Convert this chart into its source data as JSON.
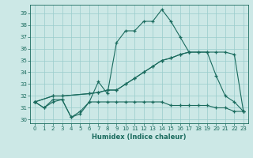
{
  "xlabel": "Humidex (Indice chaleur)",
  "bg_color": "#cce8e6",
  "line_color": "#1a6b5e",
  "grid_color": "#99cccc",
  "xlim": [
    -0.5,
    23.5
  ],
  "ylim": [
    29.7,
    39.7
  ],
  "yticks": [
    30,
    31,
    32,
    33,
    34,
    35,
    36,
    37,
    38,
    39
  ],
  "xticks": [
    0,
    1,
    2,
    3,
    4,
    5,
    6,
    7,
    8,
    9,
    10,
    11,
    12,
    13,
    14,
    15,
    16,
    17,
    18,
    19,
    20,
    21,
    22,
    23
  ],
  "series": [
    {
      "x": [
        0,
        1,
        2,
        3,
        4,
        5,
        6,
        7,
        8,
        9,
        10,
        11,
        12,
        13,
        14,
        15,
        16,
        17
      ],
      "y": [
        31.5,
        31.0,
        31.5,
        31.7,
        30.2,
        30.7,
        31.5,
        33.2,
        32.2,
        36.5,
        37.5,
        37.5,
        38.3,
        38.3,
        39.3,
        38.3,
        37.0,
        35.7
      ]
    },
    {
      "x": [
        0,
        1,
        2,
        3,
        4,
        5,
        6,
        7,
        8,
        9,
        10,
        11,
        12,
        13,
        14,
        15,
        16,
        17,
        18,
        19,
        20,
        21,
        22,
        23
      ],
      "y": [
        31.5,
        31.0,
        31.7,
        31.7,
        30.2,
        30.5,
        31.5,
        31.5,
        31.5,
        31.5,
        31.5,
        31.5,
        31.5,
        31.5,
        31.5,
        31.2,
        31.2,
        31.2,
        31.2,
        31.2,
        31.0,
        31.0,
        30.7,
        30.7
      ]
    },
    {
      "x": [
        0,
        2,
        3,
        6,
        7,
        8,
        9,
        10,
        11,
        12,
        13,
        14,
        15,
        16,
        17,
        18,
        19,
        20,
        21,
        22,
        23
      ],
      "y": [
        31.5,
        32.0,
        32.0,
        32.2,
        32.3,
        32.5,
        32.5,
        33.0,
        33.5,
        34.0,
        34.5,
        35.0,
        35.2,
        35.5,
        35.7,
        35.7,
        35.7,
        35.7,
        35.7,
        35.5,
        30.7
      ]
    },
    {
      "x": [
        0,
        2,
        3,
        6,
        7,
        8,
        9,
        10,
        11,
        12,
        13,
        14,
        15,
        16,
        17,
        18,
        19,
        20,
        21,
        22,
        23
      ],
      "y": [
        31.5,
        32.0,
        32.0,
        32.2,
        32.3,
        32.5,
        32.5,
        33.0,
        33.5,
        34.0,
        34.5,
        35.0,
        35.2,
        35.5,
        35.7,
        35.7,
        35.7,
        33.7,
        32.0,
        31.5,
        30.7
      ]
    }
  ]
}
